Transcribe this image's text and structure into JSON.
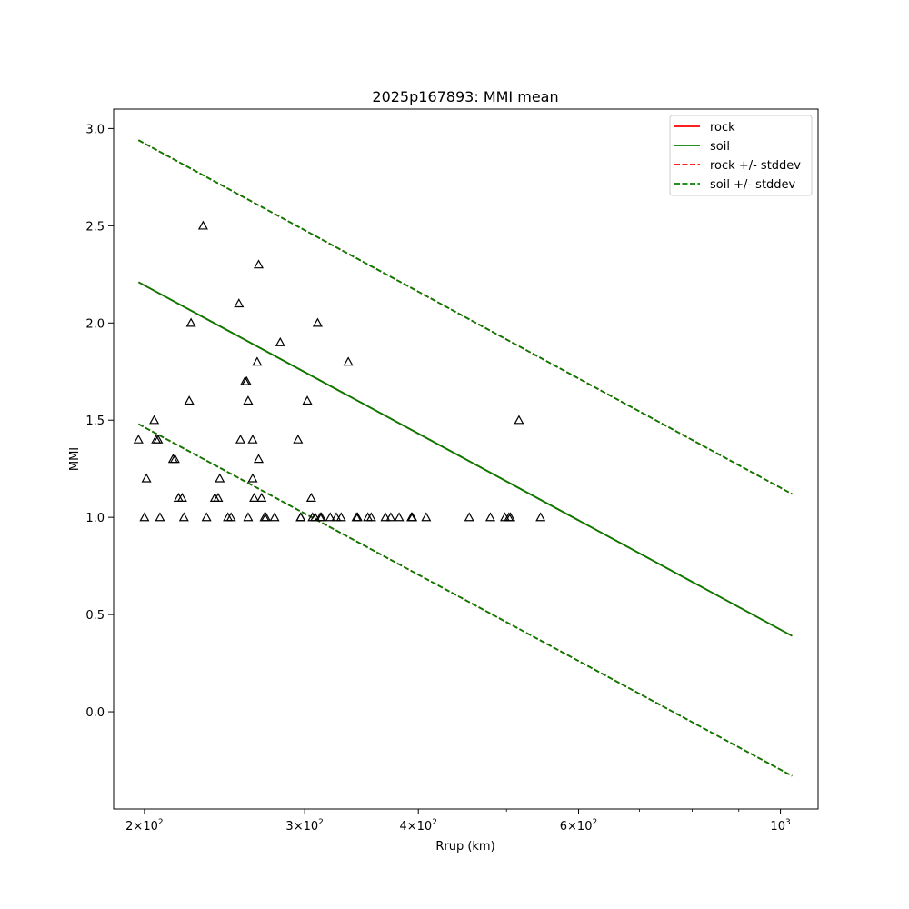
{
  "chart_data": {
    "type": "scatter",
    "title": "2025p167893: MMI mean",
    "xlabel": "Rrup (km)",
    "ylabel": "MMI",
    "xscale": "log",
    "xlim": [
      185,
      1100
    ],
    "ylim": [
      -0.5,
      3.1
    ],
    "x_ticks": [
      {
        "value": 200,
        "base": "2",
        "mult": "×10",
        "exp": "2"
      },
      {
        "value": 300,
        "base": "3",
        "mult": "×10",
        "exp": "2"
      },
      {
        "value": 400,
        "base": "4",
        "mult": "×10",
        "exp": "2"
      },
      {
        "value": 600,
        "base": "6",
        "mult": "×10",
        "exp": "2"
      },
      {
        "value": 1000,
        "base": "",
        "mult": "10",
        "exp": "3"
      }
    ],
    "x_minor_ticks": [
      500,
      700,
      800,
      900
    ],
    "y_ticks": [
      "0.0",
      "0.5",
      "1.0",
      "1.5",
      "2.0",
      "2.5",
      "3.0"
    ],
    "grid": false,
    "legend_position": "top-right",
    "legend": [
      {
        "label": "rock",
        "color": "#ff0000",
        "style": "solid"
      },
      {
        "label": "soil",
        "color": "#008000",
        "style": "solid"
      },
      {
        "label": "rock +/- stddev",
        "color": "#ff0000",
        "style": "dashed"
      },
      {
        "label": "soil +/- stddev",
        "color": "#008000",
        "style": "dashed"
      }
    ],
    "lines": [
      {
        "name": "rock",
        "style": "solid",
        "color": "#ff0000",
        "x": [
          197,
          1030
        ],
        "y": [
          2.21,
          0.39
        ]
      },
      {
        "name": "soil",
        "style": "solid",
        "color": "#008000",
        "x": [
          197,
          1030
        ],
        "y": [
          2.21,
          0.39
        ]
      },
      {
        "name": "rock +/- stddev",
        "style": "dashed",
        "color": "#ff0000",
        "x": [
          197,
          1030
        ],
        "y": [
          2.94,
          1.12
        ]
      },
      {
        "name": "rock +/- stddev",
        "style": "dashed",
        "color": "#ff0000",
        "x": [
          197,
          1030
        ],
        "y": [
          1.48,
          -0.33
        ]
      },
      {
        "name": "soil +/- stddev",
        "style": "dashed",
        "color": "#008000",
        "x": [
          197,
          1030
        ],
        "y": [
          2.94,
          1.12
        ]
      },
      {
        "name": "soil +/- stddev",
        "style": "dashed",
        "color": "#008000",
        "x": [
          197,
          1030
        ],
        "y": [
          1.48,
          -0.33
        ]
      }
    ],
    "points": [
      [
        197,
        1.4
      ],
      [
        201,
        1.2
      ],
      [
        200,
        1.0
      ],
      [
        205,
        1.5
      ],
      [
        206,
        1.4
      ],
      [
        207,
        1.4
      ],
      [
        208,
        1.0
      ],
      [
        215,
        1.3
      ],
      [
        216,
        1.3
      ],
      [
        218,
        1.1
      ],
      [
        220,
        1.1
      ],
      [
        221,
        1.0
      ],
      [
        224,
        1.6
      ],
      [
        225,
        2.0
      ],
      [
        232,
        2.5
      ],
      [
        234,
        1.0
      ],
      [
        239,
        1.1
      ],
      [
        241,
        1.1
      ],
      [
        242,
        1.2
      ],
      [
        247,
        1.0
      ],
      [
        249,
        1.0
      ],
      [
        254,
        2.1
      ],
      [
        255,
        1.4
      ],
      [
        258,
        1.7
      ],
      [
        259,
        1.7
      ],
      [
        260,
        1.6
      ],
      [
        260,
        1.0
      ],
      [
        263,
        1.4
      ],
      [
        263,
        1.2
      ],
      [
        264,
        1.1
      ],
      [
        266,
        1.8
      ],
      [
        267,
        1.3
      ],
      [
        267,
        2.3
      ],
      [
        269,
        1.1
      ],
      [
        271,
        1.0
      ],
      [
        272,
        1.0
      ],
      [
        278,
        1.0
      ],
      [
        282,
        1.9
      ],
      [
        295,
        1.4
      ],
      [
        297,
        1.0
      ],
      [
        297,
        1.0
      ],
      [
        302,
        1.6
      ],
      [
        305,
        1.1
      ],
      [
        306,
        1.0
      ],
      [
        308,
        1.0
      ],
      [
        310,
        2.0
      ],
      [
        312,
        1.0
      ],
      [
        313,
        1.0
      ],
      [
        320,
        1.0
      ],
      [
        325,
        1.0
      ],
      [
        329,
        1.0
      ],
      [
        335,
        1.8
      ],
      [
        342,
        1.0
      ],
      [
        343,
        1.0
      ],
      [
        352,
        1.0
      ],
      [
        355,
        1.0
      ],
      [
        368,
        1.0
      ],
      [
        373,
        1.0
      ],
      [
        381,
        1.0
      ],
      [
        393,
        1.0
      ],
      [
        394,
        1.0
      ],
      [
        408,
        1.0
      ],
      [
        455,
        1.0
      ],
      [
        480,
        1.0
      ],
      [
        498,
        1.0
      ],
      [
        503,
        1.0
      ],
      [
        505,
        1.0
      ],
      [
        516,
        1.5
      ],
      [
        545,
        1.0
      ]
    ]
  }
}
